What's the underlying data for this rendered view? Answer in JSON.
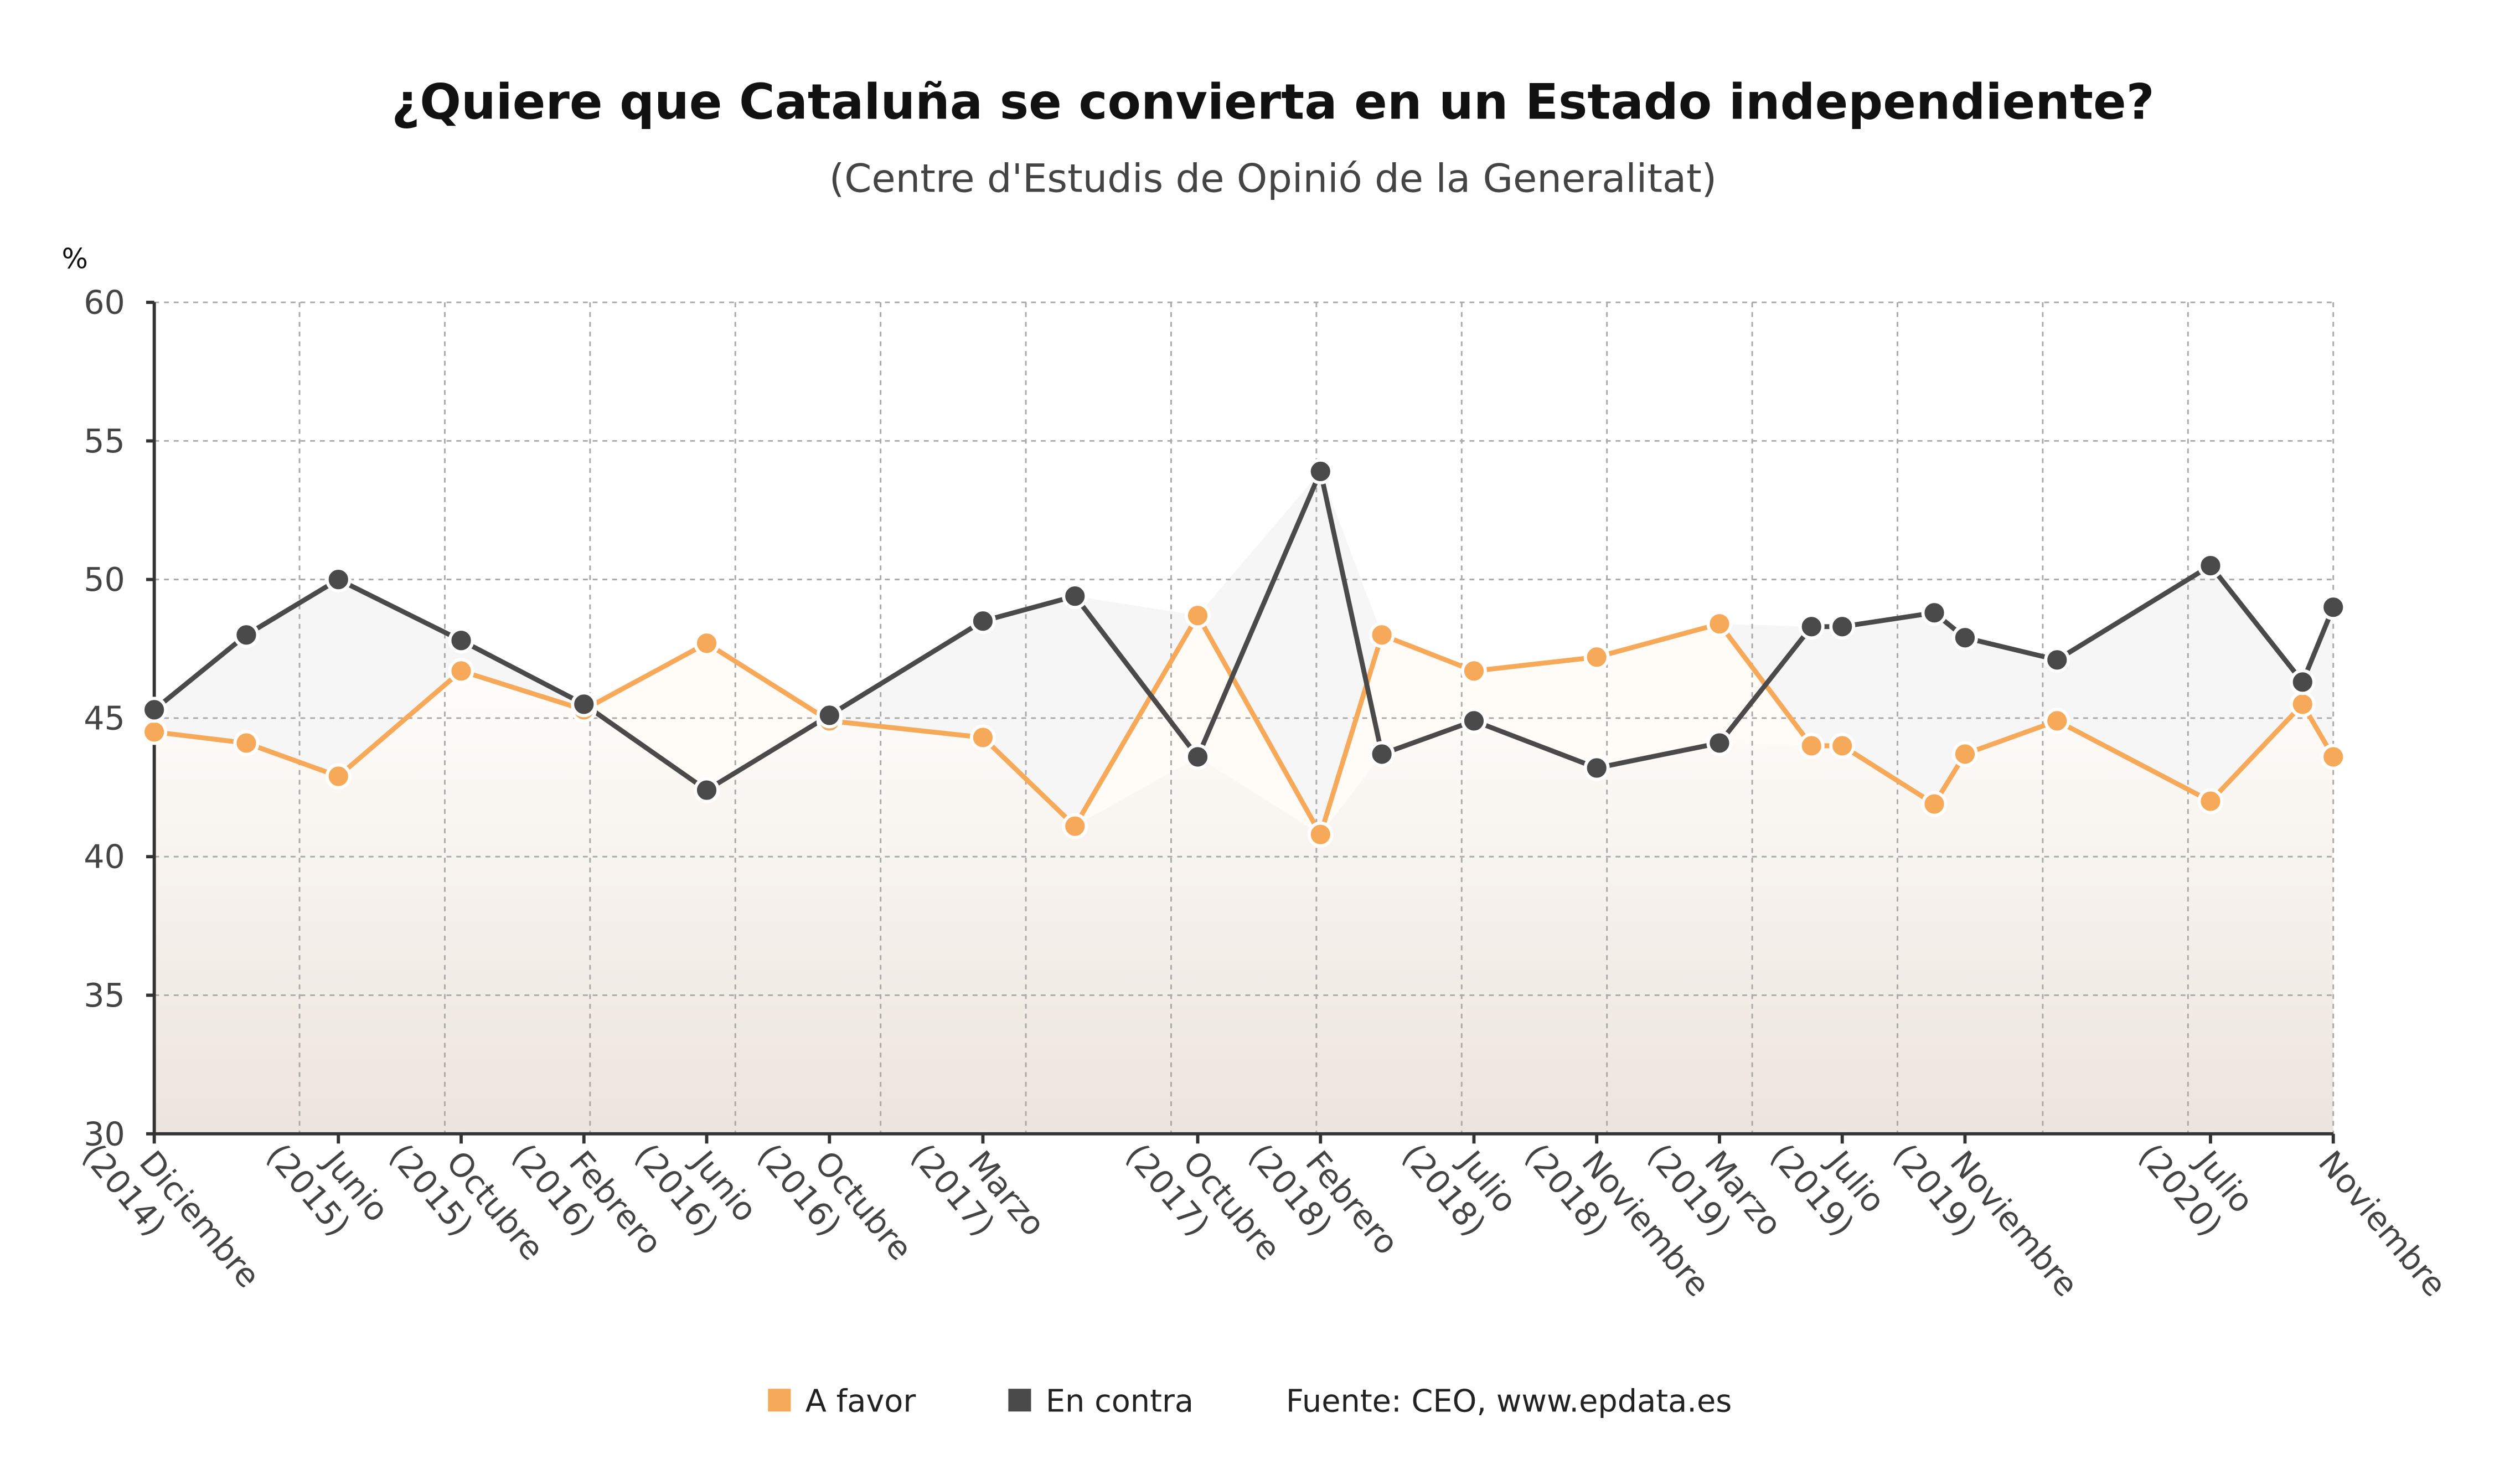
{
  "chart_data": {
    "type": "line",
    "title": "¿Quiere que Cataluña se convierta en un Estado independiente?",
    "subtitle": "(Centre d'Estudis de Opinió de la Generalitat)",
    "ylabel": "%",
    "ylim": [
      30,
      60
    ],
    "yticks": [
      "30",
      "35",
      "40",
      "45",
      "50",
      "55",
      "60"
    ],
    "grid": true,
    "x": [
      "2014-12",
      "2015-03",
      "2015-06",
      "2015-10",
      "2016-02",
      "2016-06",
      "2016-10",
      "2017-03",
      "2017-06",
      "2017-10",
      "2018-02",
      "2018-04",
      "2018-07",
      "2018-11",
      "2019-03",
      "2019-06",
      "2019-07",
      "2019-10",
      "2019-11",
      "2020-02",
      "2020-07",
      "2020-10",
      "2020-11"
    ],
    "xticks": [
      {
        "date": "2014-12",
        "label": [
          "Diciembre",
          "(2014)"
        ]
      },
      {
        "date": "2015-06",
        "label": [
          "Junio",
          "(2015)"
        ]
      },
      {
        "date": "2015-10",
        "label": [
          "Octubre",
          "(2015)"
        ]
      },
      {
        "date": "2016-02",
        "label": [
          "Febrero",
          "(2016)"
        ]
      },
      {
        "date": "2016-06",
        "label": [
          "Junio",
          "(2016)"
        ]
      },
      {
        "date": "2016-10",
        "label": [
          "Octubre",
          "(2016)"
        ]
      },
      {
        "date": "2017-03",
        "label": [
          "Marzo",
          "(2017)"
        ]
      },
      {
        "date": "2017-10",
        "label": [
          "Octubre",
          "(2017)"
        ]
      },
      {
        "date": "2018-02",
        "label": [
          "Febrero",
          "(2018)"
        ]
      },
      {
        "date": "2018-07",
        "label": [
          "Julio",
          "(2018)"
        ]
      },
      {
        "date": "2018-11",
        "label": [
          "Noviembre",
          "(2018)"
        ]
      },
      {
        "date": "2019-03",
        "label": [
          "Marzo",
          "(2019)"
        ]
      },
      {
        "date": "2019-07",
        "label": [
          "Julio",
          "(2019)"
        ]
      },
      {
        "date": "2019-11",
        "label": [
          "Noviembre",
          "(2019)"
        ]
      },
      {
        "date": "2020-07",
        "label": [
          "Julio",
          "(2020)"
        ]
      },
      {
        "date": "2020-11",
        "label": [
          "Noviembre"
        ]
      }
    ],
    "series": [
      {
        "name": "A favor",
        "color": "#f7a95a",
        "values": [
          44.5,
          44.1,
          42.9,
          46.7,
          45.3,
          47.7,
          44.9,
          44.3,
          41.1,
          48.7,
          40.8,
          48.0,
          46.7,
          47.2,
          48.4,
          44.0,
          44.0,
          41.9,
          43.7,
          44.9,
          42.0,
          45.5,
          43.6
        ]
      },
      {
        "name": "En contra",
        "color": "#4a4a4a",
        "values": [
          45.3,
          48.0,
          50.0,
          47.8,
          45.5,
          42.4,
          45.1,
          48.5,
          49.4,
          43.6,
          53.9,
          43.7,
          44.9,
          43.2,
          44.1,
          48.3,
          48.3,
          48.8,
          47.9,
          47.1,
          50.5,
          46.3,
          49.0
        ]
      }
    ],
    "legend_position": "bottom",
    "source": "Fuente: CEO, www.epdata.es"
  }
}
